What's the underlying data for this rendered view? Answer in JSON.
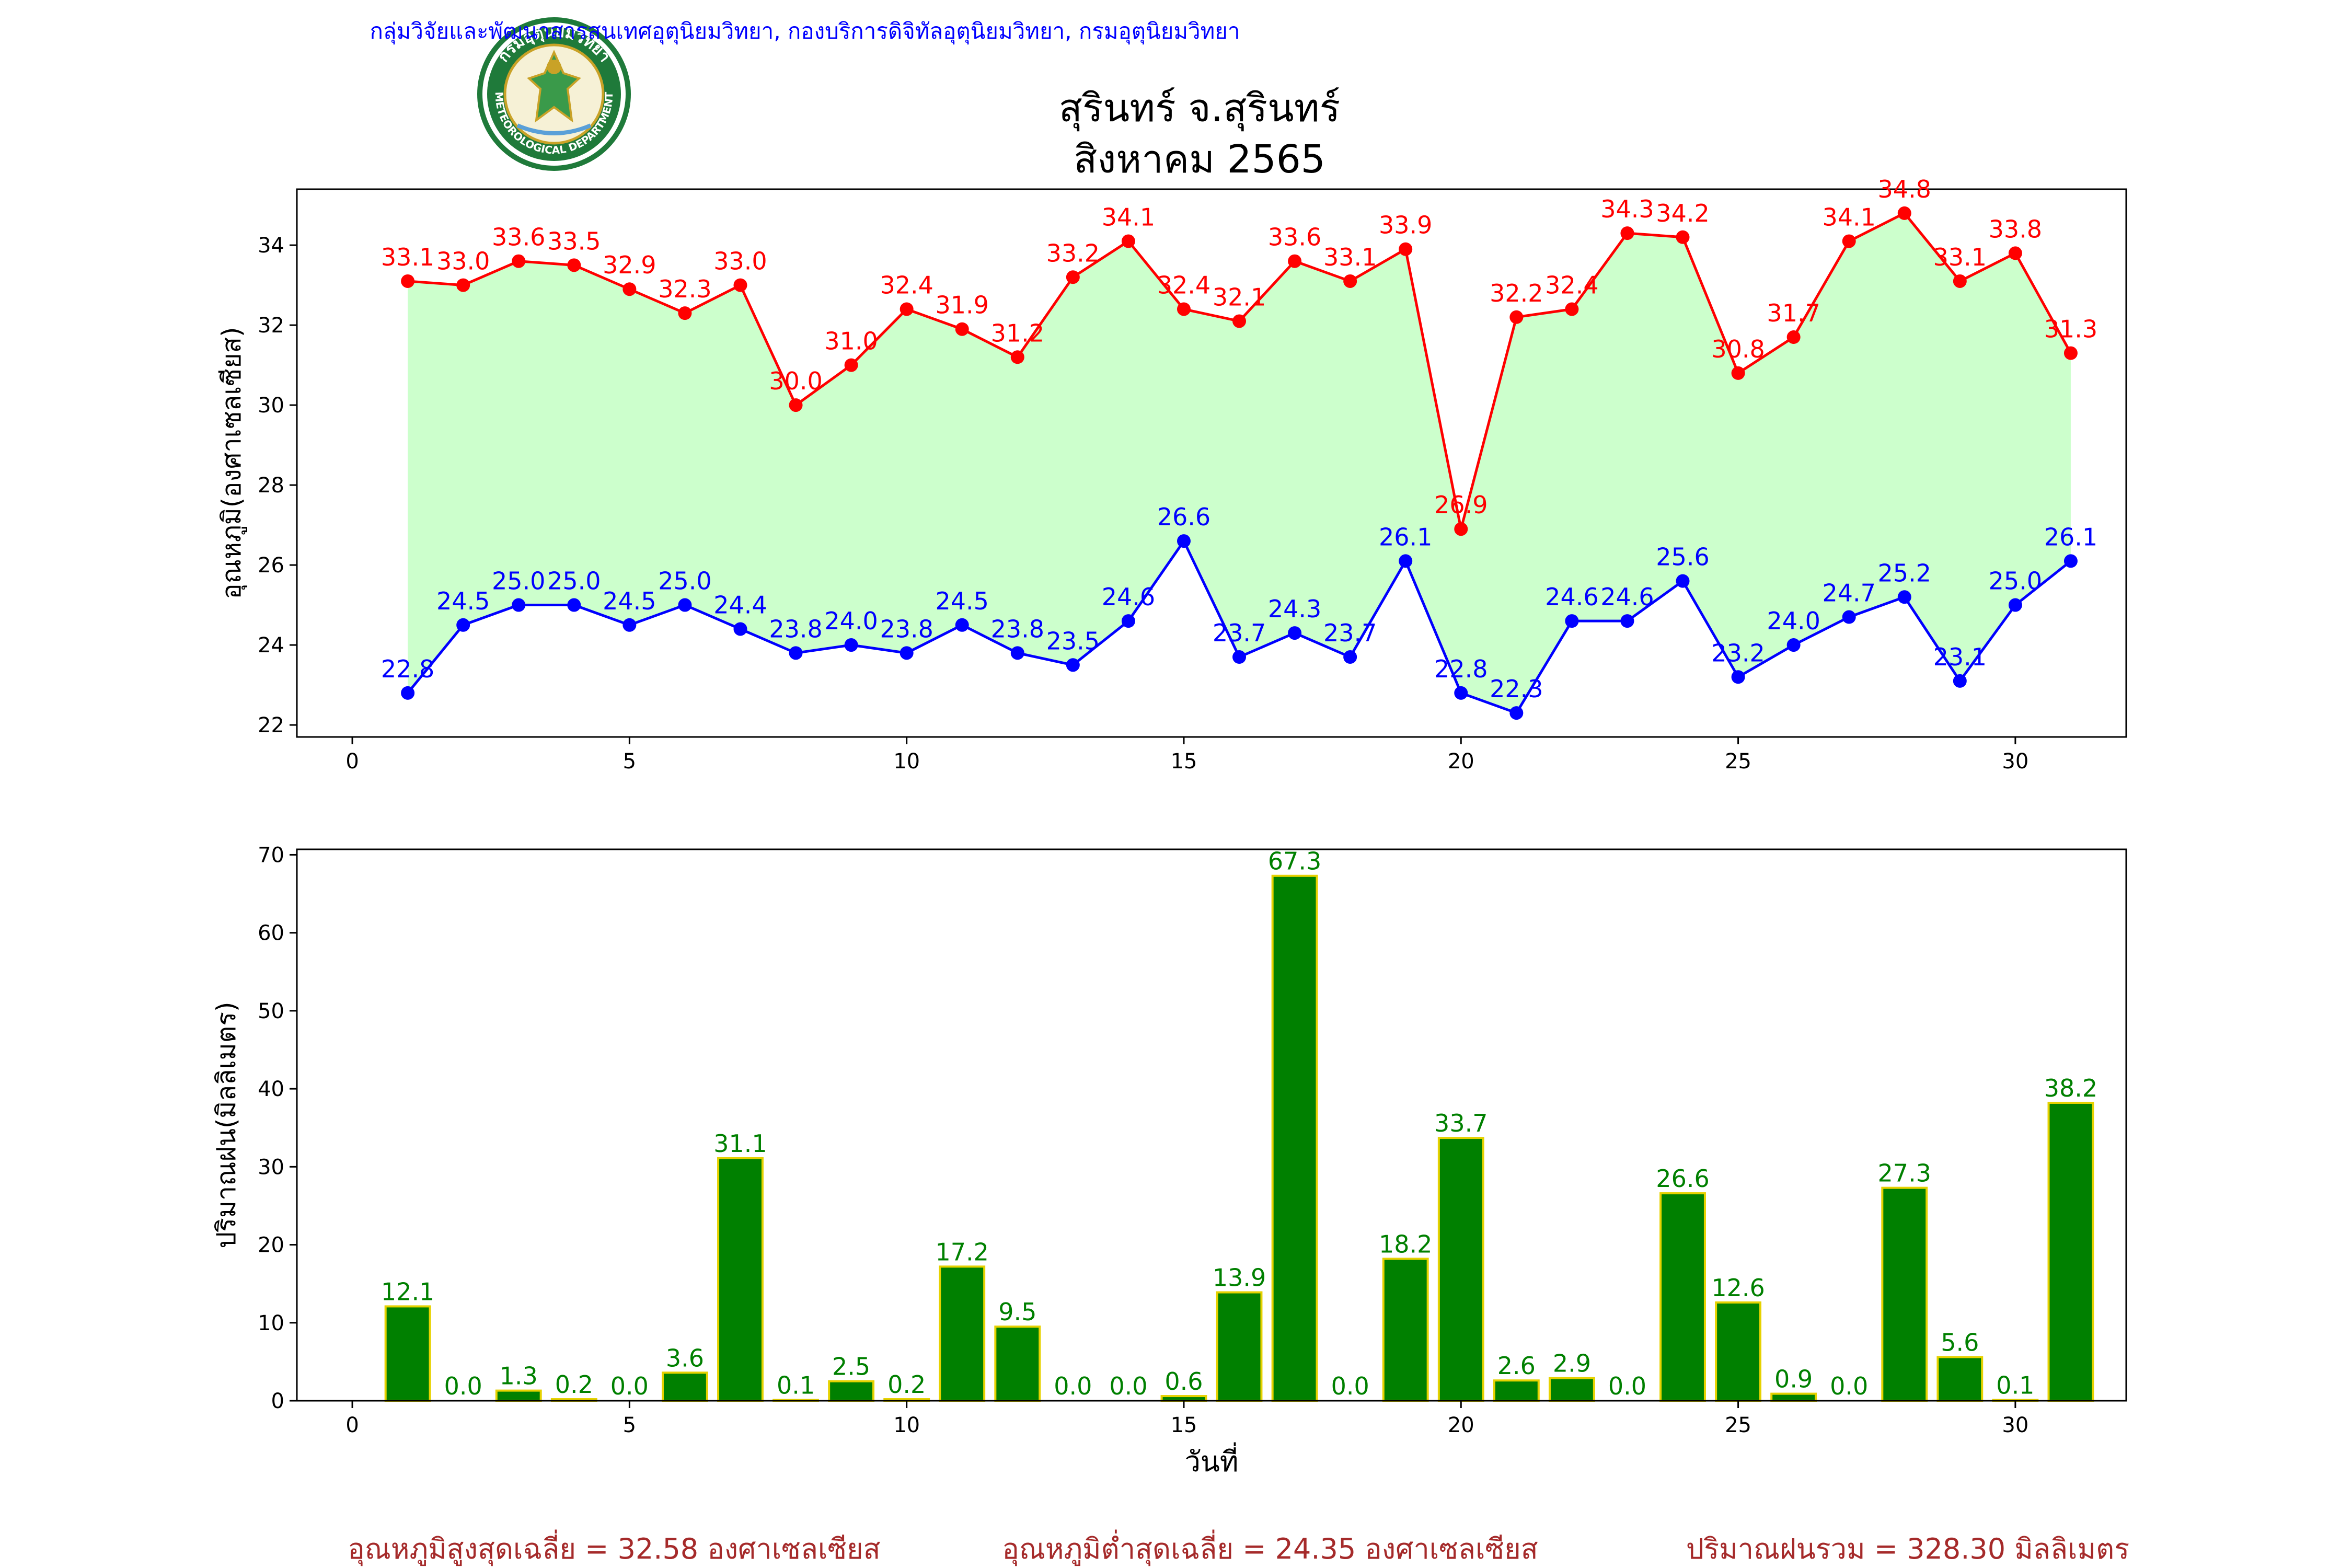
{
  "header": {
    "agency_line": "กลุ่มวิจัยและพัฒนาสารสนเทศอุตุนิยมวิทยา, กองบริการดิจิทัลอุตุนิยมวิทยา, กรมอุตุนิยมวิทยา",
    "title_line1": "สุรินทร์ จ.สุรินทร์",
    "title_line2": "สิงหาคม 2565",
    "logo_top_text": "กรมอุตุนิยมวิทยา",
    "logo_bottom_text": "METEOROLOGICAL DEPARTMENT"
  },
  "colors": {
    "tmax": "#ff0000",
    "tmin": "#0000ff",
    "fill": "#ccffcc",
    "bar_fill": "#008000",
    "bar_edge": "#e6d200",
    "bar_label": "#008000",
    "footer": "#a52a2a",
    "header": "#0000ff",
    "logo_green": "#1f7a3a"
  },
  "chart_data": [
    {
      "type": "line",
      "ylabel": "อุณหภูมิ(องศาเซลเซียส)",
      "xlim": [
        -1,
        32
      ],
      "ylim": [
        21.7,
        35.4
      ],
      "xticks": [
        0,
        5,
        10,
        15,
        20,
        25,
        30
      ],
      "yticks": [
        22,
        24,
        26,
        28,
        30,
        32,
        34
      ],
      "x": [
        1,
        2,
        3,
        4,
        5,
        6,
        7,
        8,
        9,
        10,
        11,
        12,
        13,
        14,
        15,
        16,
        17,
        18,
        19,
        20,
        21,
        22,
        23,
        24,
        25,
        26,
        27,
        28,
        29,
        30,
        31
      ],
      "series": [
        {
          "key": "tmax",
          "values": [
            33.1,
            33.0,
            33.6,
            33.5,
            32.9,
            32.3,
            33.0,
            30.0,
            31.0,
            32.4,
            31.9,
            31.2,
            33.2,
            34.1,
            32.4,
            32.1,
            33.6,
            33.1,
            33.9,
            26.9,
            32.2,
            32.4,
            34.3,
            34.2,
            30.8,
            31.7,
            34.1,
            34.8,
            33.1,
            33.8,
            31.3
          ]
        },
        {
          "key": "tmin",
          "values": [
            22.8,
            24.5,
            25.0,
            25.0,
            24.5,
            25.0,
            24.4,
            23.8,
            24.0,
            23.8,
            24.5,
            23.8,
            23.5,
            24.6,
            26.6,
            23.7,
            24.3,
            23.7,
            26.1,
            22.8,
            22.3,
            24.6,
            24.6,
            25.6,
            23.2,
            24.0,
            24.7,
            25.2,
            23.1,
            25.0,
            26.1
          ]
        }
      ],
      "fill_between": true
    },
    {
      "type": "bar",
      "xlabel": "วันที่",
      "ylabel": "ปริมาณฝน(มิลลิเมตร)",
      "xlim": [
        -1,
        32
      ],
      "ylim": [
        0,
        70.7
      ],
      "xticks": [
        0,
        5,
        10,
        15,
        20,
        25,
        30
      ],
      "yticks": [
        0,
        10,
        20,
        30,
        40,
        50,
        60,
        70
      ],
      "x": [
        1,
        2,
        3,
        4,
        5,
        6,
        7,
        8,
        9,
        10,
        11,
        12,
        13,
        14,
        15,
        16,
        17,
        18,
        19,
        20,
        21,
        22,
        23,
        24,
        25,
        26,
        27,
        28,
        29,
        30,
        31
      ],
      "values": [
        12.1,
        0.0,
        1.3,
        0.2,
        0.0,
        3.6,
        31.1,
        0.1,
        2.5,
        0.2,
        17.2,
        9.5,
        0.0,
        0.0,
        0.6,
        13.9,
        67.3,
        0.0,
        18.2,
        33.7,
        2.6,
        2.9,
        0.0,
        26.6,
        12.6,
        0.9,
        0.0,
        27.3,
        5.6,
        0.1,
        38.2
      ]
    }
  ],
  "footer": {
    "avg_max": "อุณหภูมิสูงสุดเฉลี่ย = 32.58 องศาเซลเซียส",
    "avg_min": "อุณหภูมิต่ำสุดเฉลี่ย = 24.35 องศาเซลเซียส",
    "total_rain": "ปริมาณฝนรวม = 328.30 มิลลิเมตร"
  }
}
